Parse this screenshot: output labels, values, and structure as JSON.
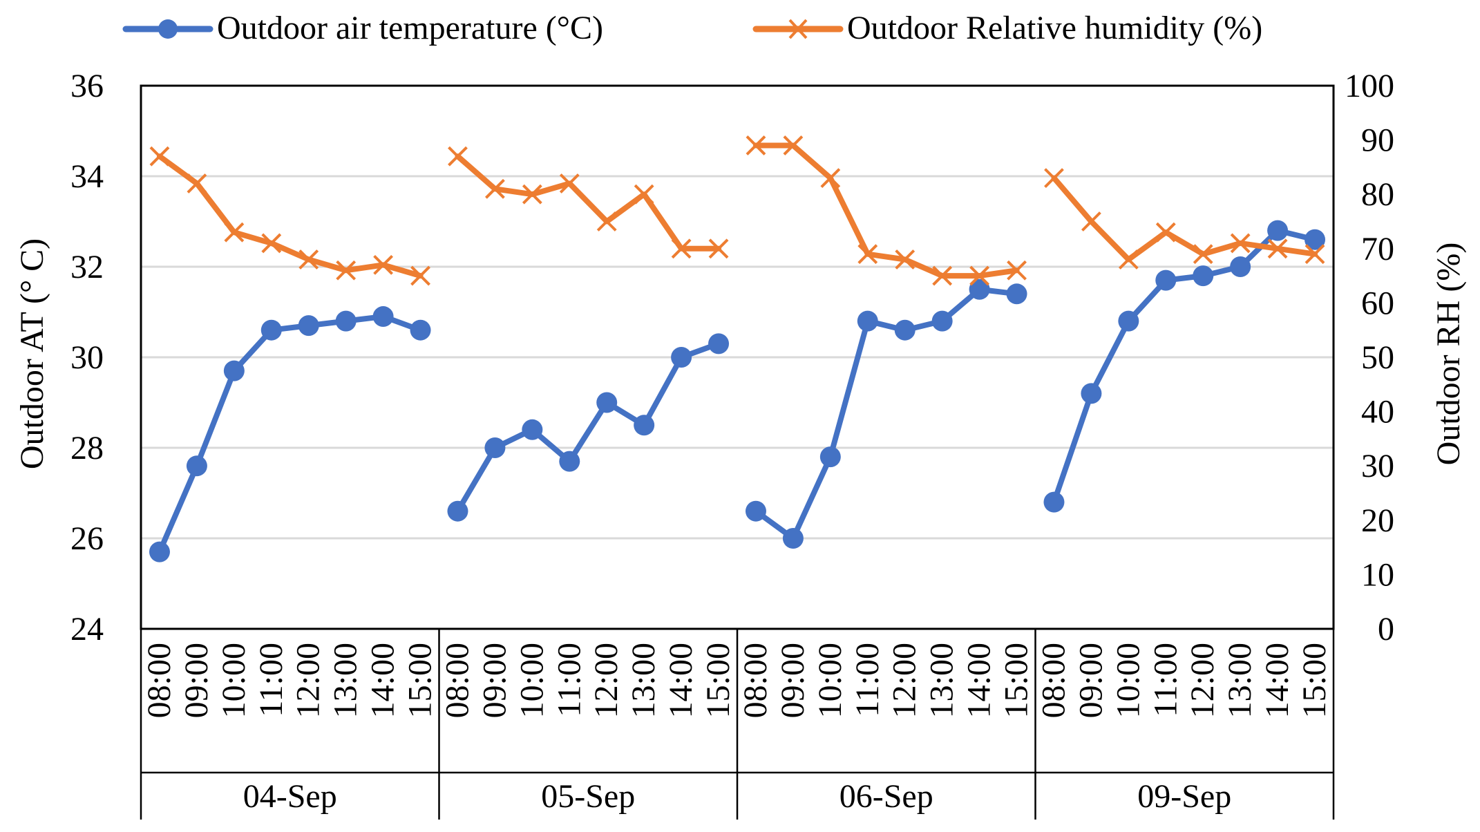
{
  "legend": {
    "temperature_label": "Outdoor air temperature (°C)",
    "humidity_label": "Outdoor Relative humidity (%)"
  },
  "axes": {
    "y_left_label": "Outdoor AT (°  C)",
    "y_right_label": "Outdoor RH (%)"
  },
  "chart_data": {
    "type": "line",
    "groups": [
      "04-Sep",
      "05-Sep",
      "06-Sep",
      "09-Sep"
    ],
    "x": [
      "08:00",
      "09:00",
      "10:00",
      "11:00",
      "12:00",
      "13:00",
      "14:00",
      "15:00"
    ],
    "y_left": {
      "label": "Outdoor AT (°  C)",
      "ylim": [
        24,
        36
      ],
      "ticks": [
        24,
        26,
        28,
        30,
        32,
        34,
        36
      ]
    },
    "y_right": {
      "label": "Outdoor RH (%)",
      "ylim": [
        0,
        100
      ],
      "ticks": [
        0,
        10,
        20,
        30,
        40,
        50,
        60,
        70,
        80,
        90,
        100
      ]
    },
    "grid": true,
    "legend_position": "top",
    "series": [
      {
        "name": "Outdoor air temperature (°C)",
        "axis": "left",
        "color": "#4472C4",
        "marker": "circle",
        "values": [
          [
            25.7,
            27.6,
            29.7,
            30.6,
            30.7,
            30.8,
            30.9,
            30.6
          ],
          [
            26.6,
            28.0,
            28.4,
            27.7,
            29.0,
            28.5,
            30.0,
            30.3
          ],
          [
            26.6,
            26.0,
            27.8,
            30.8,
            30.6,
            30.8,
            31.5,
            31.4
          ],
          [
            26.8,
            29.2,
            30.8,
            31.7,
            31.8,
            32.0,
            32.8,
            32.6
          ]
        ]
      },
      {
        "name": "Outdoor Relative humidity (%)",
        "axis": "right",
        "color": "#ED7D31",
        "marker": "x",
        "values": [
          [
            87,
            82,
            73,
            71,
            68,
            66,
            67,
            65
          ],
          [
            87,
            81,
            80,
            82,
            75,
            80,
            70,
            70
          ],
          [
            89,
            89,
            83,
            69,
            68,
            65,
            65,
            66
          ],
          [
            83,
            75,
            68,
            73,
            69,
            71,
            70,
            69
          ]
        ]
      }
    ]
  }
}
